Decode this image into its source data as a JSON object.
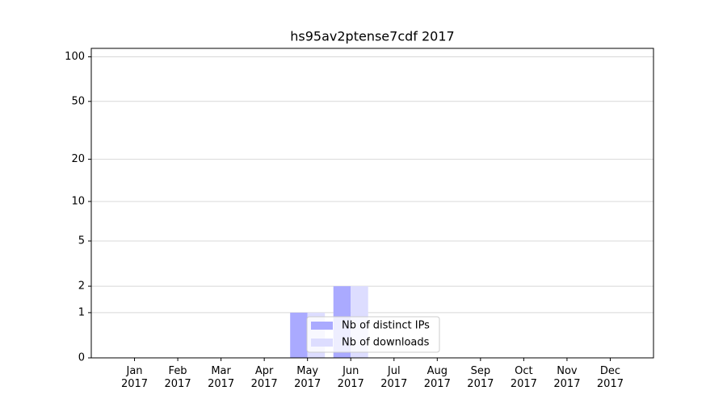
{
  "chart_data": {
    "type": "bar",
    "title": "hs95av2ptense7cdf 2017",
    "categories": [
      "Jan 2017",
      "Feb 2017",
      "Mar 2017",
      "Apr 2017",
      "May 2017",
      "Jun 2017",
      "Jul 2017",
      "Aug 2017",
      "Sep 2017",
      "Oct 2017",
      "Nov 2017",
      "Dec 2017"
    ],
    "series": [
      {
        "name": "Nb of distinct IPs",
        "color": "#aaaaff",
        "values": [
          0,
          0,
          0,
          0,
          1,
          2,
          0,
          0,
          0,
          0,
          0,
          0
        ]
      },
      {
        "name": "Nb of downloads",
        "color": "#ddddff",
        "values": [
          0,
          0,
          0,
          0,
          1,
          2,
          0,
          0,
          0,
          0,
          0,
          0
        ]
      }
    ],
    "yscale": "symlog",
    "ylim": [
      0,
      114
    ],
    "yticks": [
      0,
      1,
      2,
      5,
      10,
      20,
      50,
      100
    ],
    "grid": true,
    "legend": "lower center"
  }
}
